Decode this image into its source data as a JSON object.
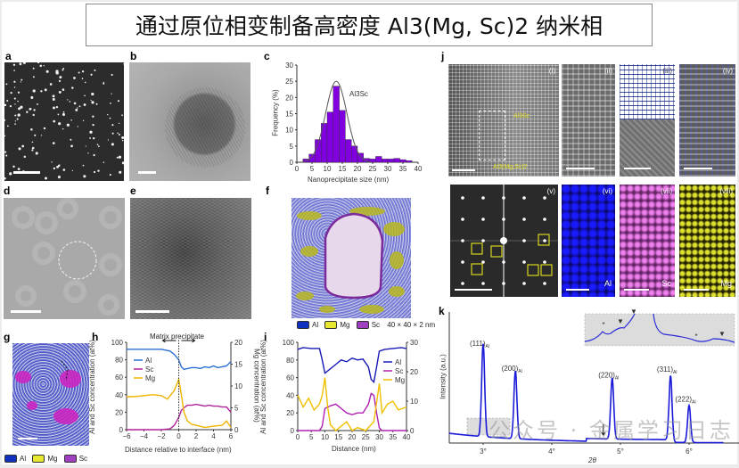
{
  "title": "通过原位相变制备高密度 Al3(Mg, Sc)2 纳米相",
  "watermark": "公众号 · 金属学习日志",
  "panels": {
    "a": "a",
    "b": "b",
    "c": "c",
    "d": "d",
    "e": "e",
    "f": "f",
    "g": "g",
    "h": "h",
    "i": "i",
    "j": "j",
    "k": "k"
  },
  "panel_j": {
    "sub_labels": [
      "(i)",
      "(ii)",
      "(iii)",
      "(iv)",
      "(v)",
      "(vi)",
      "(vii)",
      "(viii)"
    ],
    "phase_label_1": "Al3Sc",
    "phase_label_2": "Al3(Mg,Sc)2",
    "element_labels": [
      "Al",
      "Sc",
      "Mg"
    ],
    "map_colors": {
      "Al": "#1a1aff",
      "Sc": "#e060e0",
      "Mg": "#d8d820"
    }
  },
  "panel_f_legend": {
    "items": [
      {
        "label": "Al",
        "color": "#1030c0"
      },
      {
        "label": "Mg",
        "color": "#e8e830"
      },
      {
        "label": "Sc",
        "color": "#a040c0"
      }
    ],
    "box_size": "40 × 40 × 2 nm"
  },
  "panel_g_legend": {
    "items": [
      {
        "label": "Al",
        "color": "#1030c0"
      },
      {
        "label": "Mg",
        "color": "#e8e830"
      },
      {
        "label": "Sc",
        "color": "#a040c0"
      }
    ]
  },
  "chart_data": [
    {
      "id": "c",
      "type": "bar",
      "xlabel": "Nanoprecipitate size (nm)",
      "ylabel": "Frequency (%)",
      "annotation": "Al3Sc",
      "xlim": [
        0,
        40
      ],
      "ylim": [
        0,
        30
      ],
      "xticks": [
        0,
        5,
        10,
        15,
        20,
        25,
        30,
        35,
        40
      ],
      "yticks": [
        0,
        5,
        10,
        15,
        20,
        25,
        30
      ],
      "bin_width": 2,
      "bins": [
        2,
        4,
        6,
        8,
        10,
        12,
        14,
        16,
        18,
        20,
        22,
        24,
        26,
        28,
        30,
        32,
        34,
        36
      ],
      "values": [
        1,
        2.5,
        7,
        12,
        15.5,
        23.5,
        16,
        7,
        5,
        2.8,
        1.2,
        1,
        1.8,
        1,
        1,
        1.2,
        0.8,
        0.5
      ],
      "fit": {
        "type": "gaussian",
        "peak": 25,
        "center": 13,
        "sigma": 3.5
      },
      "bar_color": "#8000e0"
    },
    {
      "id": "h",
      "type": "line",
      "title": "Matrix precipitate",
      "xlabel": "Distance relative to interface (nm)",
      "ylabel": "Al and Sc concentration (at%)",
      "y2label": "Mg concentration (at%)",
      "xlim": [
        -6,
        6
      ],
      "ylim": [
        0,
        100
      ],
      "y2lim": [
        0,
        20
      ],
      "xticks": [
        -6,
        -4,
        -2,
        0,
        2,
        4,
        6
      ],
      "yticks": [
        0,
        20,
        40,
        60,
        80,
        100
      ],
      "y2ticks": [
        0,
        5,
        10,
        15,
        20
      ],
      "series": [
        {
          "name": "Al",
          "color": "#2a6fd6",
          "axis": "left",
          "points": [
            [
              -6,
              92
            ],
            [
              -4,
              92
            ],
            [
              -2,
              92
            ],
            [
              -1,
              90
            ],
            [
              -0.5,
              86
            ],
            [
              0,
              80
            ],
            [
              0.3,
              72
            ],
            [
              0.6,
              69
            ],
            [
              1,
              70
            ],
            [
              1.5,
              71
            ],
            [
              2,
              71
            ],
            [
              2.5,
              70
            ],
            [
              3,
              72
            ],
            [
              3.5,
              71
            ],
            [
              4,
              73
            ],
            [
              4.5,
              71
            ],
            [
              5,
              72
            ],
            [
              5.5,
              73
            ],
            [
              6,
              78
            ]
          ]
        },
        {
          "name": "Sc",
          "color": "#b0209a",
          "axis": "left",
          "points": [
            [
              -6,
              0
            ],
            [
              -2,
              0
            ],
            [
              -1,
              1
            ],
            [
              -0.5,
              5
            ],
            [
              0,
              14
            ],
            [
              0.3,
              22
            ],
            [
              0.6,
              25
            ],
            [
              1,
              28
            ],
            [
              1.5,
              28
            ],
            [
              2,
              29
            ],
            [
              2.5,
              28
            ],
            [
              3,
              27
            ],
            [
              3.5,
              28
            ],
            [
              4,
              27
            ],
            [
              4.5,
              27
            ],
            [
              5,
              26
            ],
            [
              5.5,
              26
            ],
            [
              6,
              20
            ]
          ]
        },
        {
          "name": "Mg",
          "color": "#f0b400",
          "axis": "right",
          "points": [
            [
              -6,
              7.5
            ],
            [
              -5,
              7.6
            ],
            [
              -4,
              7.8
            ],
            [
              -3,
              8
            ],
            [
              -2,
              7.8
            ],
            [
              -1.3,
              7
            ],
            [
              -0.5,
              9
            ],
            [
              0,
              11.5
            ],
            [
              0.3,
              8
            ],
            [
              0.6,
              4
            ],
            [
              1,
              2
            ],
            [
              1.5,
              1.2
            ],
            [
              2,
              1
            ],
            [
              3,
              0.5
            ],
            [
              4,
              0.8
            ],
            [
              5,
              1
            ],
            [
              5.5,
              2
            ],
            [
              6,
              0.5
            ]
          ]
        }
      ],
      "marker_x": 0
    },
    {
      "id": "i",
      "type": "line",
      "xlabel": "Distance (nm)",
      "ylabel": "Al and Sc concentration (at%)",
      "xlim": [
        0,
        40
      ],
      "ylim": [
        0,
        100
      ],
      "y2lim": [
        0,
        30
      ],
      "xticks": [
        0,
        5,
        10,
        15,
        20,
        25,
        30,
        35,
        40
      ],
      "yticks": [
        0,
        20,
        40,
        60,
        80,
        100
      ],
      "y2ticks": [
        0,
        10,
        20,
        30
      ],
      "series": [
        {
          "name": "Al",
          "color": "#1a1ab8",
          "axis": "left",
          "points": [
            [
              0,
              92
            ],
            [
              2,
              94
            ],
            [
              5,
              93
            ],
            [
              8,
              93
            ],
            [
              9,
              80
            ],
            [
              10,
              65
            ],
            [
              12,
              70
            ],
            [
              14,
              75
            ],
            [
              16,
              80
            ],
            [
              18,
              78
            ],
            [
              20,
              82
            ],
            [
              22,
              80
            ],
            [
              24,
              81
            ],
            [
              26,
              72
            ],
            [
              27,
              58
            ],
            [
              28,
              55
            ],
            [
              29,
              72
            ],
            [
              30,
              90
            ],
            [
              32,
              92
            ],
            [
              35,
              93
            ],
            [
              38,
              94
            ],
            [
              40,
              93
            ]
          ]
        },
        {
          "name": "Sc",
          "color": "#b020b0",
          "axis": "left",
          "points": [
            [
              0,
              0
            ],
            [
              8,
              0
            ],
            [
              9,
              5
            ],
            [
              10,
              25
            ],
            [
              12,
              28
            ],
            [
              14,
              30
            ],
            [
              16,
              25
            ],
            [
              18,
              20
            ],
            [
              20,
              18
            ],
            [
              22,
              20
            ],
            [
              24,
              20
            ],
            [
              26,
              30
            ],
            [
              27,
              42
            ],
            [
              28,
              40
            ],
            [
              29,
              20
            ],
            [
              30,
              3
            ],
            [
              31,
              0
            ],
            [
              40,
              0
            ]
          ]
        },
        {
          "name": "Mg",
          "color": "#f0c000",
          "axis": "right",
          "points": [
            [
              0,
              12
            ],
            [
              2,
              8
            ],
            [
              4,
              11
            ],
            [
              6,
              7
            ],
            [
              8,
              9
            ],
            [
              9,
              12
            ],
            [
              10,
              18
            ],
            [
              11,
              8
            ],
            [
              12,
              2
            ],
            [
              14,
              0
            ],
            [
              18,
              3
            ],
            [
              20,
              0
            ],
            [
              22,
              1
            ],
            [
              25,
              0
            ],
            [
              28,
              3
            ],
            [
              30,
              16
            ],
            [
              31,
              6
            ],
            [
              33,
              9
            ],
            [
              35,
              10
            ],
            [
              37,
              7
            ],
            [
              40,
              8
            ]
          ]
        }
      ]
    },
    {
      "id": "k",
      "type": "line",
      "xlabel": "2θ",
      "ylabel": "Intensity (a.u.)",
      "xlim": [
        2.5,
        6.75
      ],
      "xticks": [
        "3°",
        "4°",
        "5°",
        "6°"
      ],
      "xtick_values": [
        3,
        4,
        5,
        6
      ],
      "peaks": [
        {
          "label": "(111)",
          "sub": "Al",
          "position": 3.0,
          "intensity": 100
        },
        {
          "label": "(200)",
          "sub": "Al",
          "position": 3.47,
          "intensity": 73
        },
        {
          "label": "(220)",
          "sub": "Al",
          "position": 4.88,
          "intensity": 66
        },
        {
          "label": "(311)",
          "sub": "Al",
          "position": 5.73,
          "intensity": 72
        },
        {
          "label": "(222)",
          "sub": "Al",
          "position": 6.0,
          "intensity": 40
        }
      ],
      "line_color": "#1a1ad8",
      "inset": true
    }
  ]
}
